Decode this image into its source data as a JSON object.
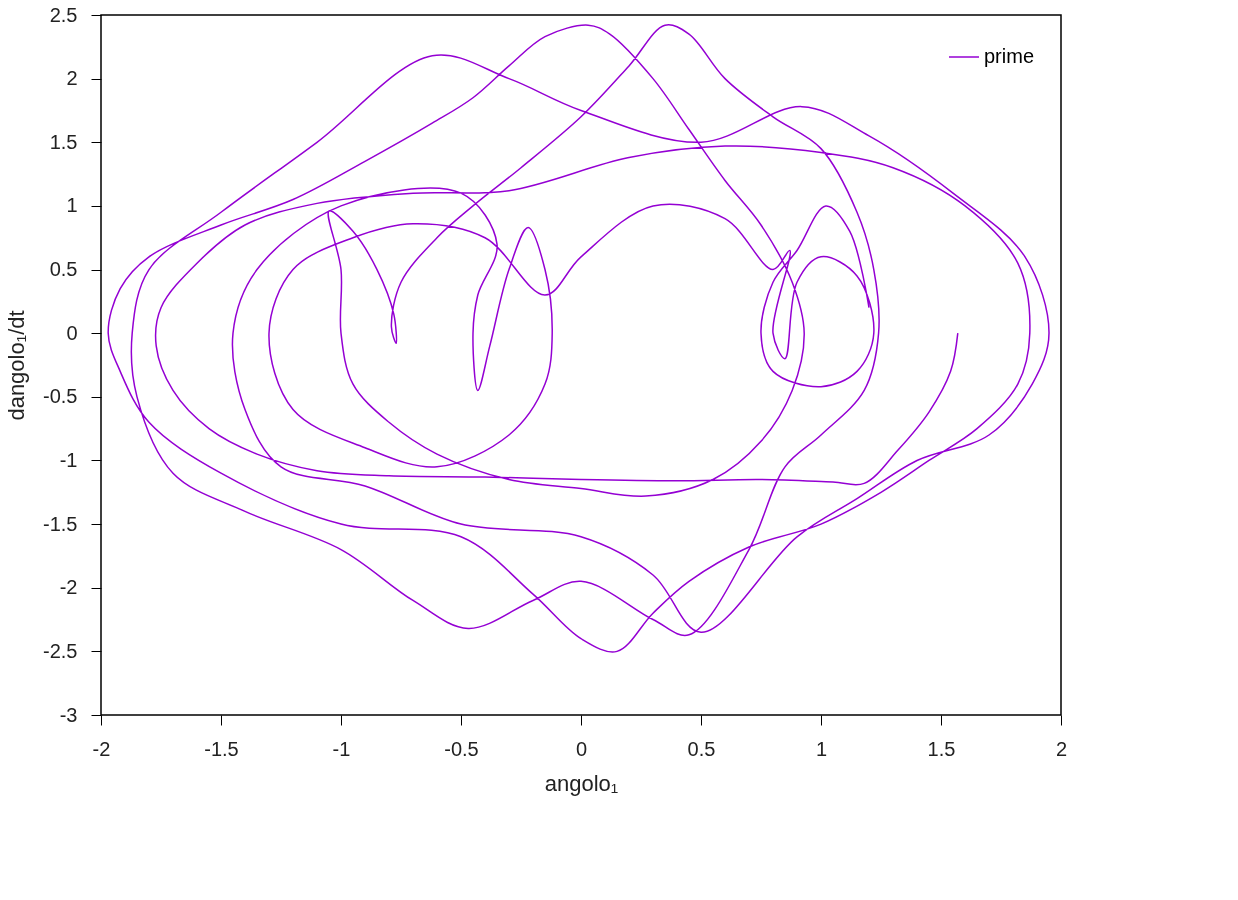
{
  "chart_data": {
    "type": "line",
    "xlabel": "angolo₁",
    "ylabel": "dangolo₁/dt",
    "xlim": [
      -2,
      2
    ],
    "ylim": [
      -3,
      2.5
    ],
    "xticks": [
      -2,
      -1.5,
      -1,
      -0.5,
      0,
      0.5,
      1,
      1.5,
      2
    ],
    "yticks": [
      -3,
      -2.5,
      -2,
      -1.5,
      -1,
      -0.5,
      0,
      0.5,
      1,
      1.5,
      2,
      2.5
    ],
    "grid": false,
    "legend": "top right",
    "marker": "none",
    "line_style": "solid",
    "series": [
      {
        "name": "prime",
        "color": "#9400d3",
        "x": [
          1.57,
          1.54,
          1.45,
          1.32,
          1.18,
          1.05,
          0.75,
          0.4,
          0.0,
          -0.4,
          -0.8,
          -1.1,
          -1.35,
          -1.55,
          -1.7,
          -1.77,
          -1.75,
          -1.6,
          -1.4,
          -1.1,
          -0.7,
          -0.3,
          0.2,
          0.6,
          1.0,
          1.3,
          1.6,
          1.82,
          1.87,
          1.82,
          1.65,
          1.45,
          1.25,
          1.0,
          0.7,
          0.45,
          0.3,
          0.15,
          0.0,
          -0.2,
          -0.5,
          -1.0,
          -1.5,
          -1.8,
          -1.92,
          -1.97,
          -1.92,
          -1.8,
          -1.5,
          -1.2,
          -0.9,
          -0.62,
          -0.45,
          -0.3,
          -0.15,
          0.03,
          0.12,
          0.3,
          0.45,
          0.6,
          0.75,
          0.88,
          0.93,
          0.88,
          0.75,
          0.55,
          0.27,
          0.0,
          -0.3,
          -0.6,
          -0.8,
          -0.95,
          -1.0,
          -1.0,
          -1.05,
          -0.95,
          -0.85,
          -0.78,
          -0.77,
          -0.79,
          -0.75,
          -0.6,
          -0.45,
          -0.25,
          0.0,
          0.2,
          0.35,
          0.45,
          0.6,
          0.8,
          1.0,
          1.15,
          1.22,
          1.24,
          1.18,
          1.0,
          0.85,
          0.7,
          0.45,
          0.3,
          0.0,
          -0.2,
          -0.47,
          -0.7,
          -1.0,
          -1.4,
          -1.7,
          -1.85,
          -1.87,
          -1.8,
          -1.5,
          -1.1,
          -0.62,
          -0.3,
          0.0,
          0.5,
          0.92,
          1.2,
          1.55,
          1.85,
          1.95,
          1.88,
          1.7,
          1.4,
          1.15,
          0.9,
          0.5,
          0.3,
          0.0,
          -0.5,
          -0.9,
          -1.25,
          -1.4,
          -1.45,
          -1.35,
          -1.0,
          -0.5,
          -0.35,
          -0.43,
          -0.45,
          -0.43,
          -0.38,
          -0.3,
          -0.22,
          -0.15,
          -0.12,
          -0.15,
          -0.3,
          -0.6,
          -0.9,
          -1.2,
          -1.3,
          -1.2,
          -0.95,
          -0.7,
          -0.4,
          -0.15,
          0.0,
          0.3,
          0.6,
          0.8,
          0.87,
          0.8,
          0.85,
          0.9,
          1.0,
          1.15,
          1.22,
          1.15,
          1.0,
          0.8,
          0.75,
          0.8,
          0.9,
          1.02,
          1.12,
          1.2
        ],
        "values": [
          0.0,
          -0.3,
          -0.62,
          -0.92,
          -1.18,
          -1.17,
          -1.15,
          -1.16,
          -1.15,
          -1.13,
          -1.12,
          -1.08,
          -0.95,
          -0.75,
          -0.45,
          -0.1,
          0.2,
          0.55,
          0.85,
          1.02,
          1.1,
          1.12,
          1.38,
          1.47,
          1.42,
          1.3,
          1.0,
          0.55,
          0.0,
          -0.4,
          -0.75,
          -1.0,
          -1.25,
          -1.5,
          -1.68,
          -1.95,
          -2.2,
          -2.5,
          -2.4,
          -2.05,
          -1.6,
          -1.5,
          -1.1,
          -0.7,
          -0.3,
          0.0,
          0.35,
          0.6,
          0.85,
          1.05,
          1.35,
          1.65,
          1.85,
          2.1,
          2.33,
          2.42,
          2.35,
          2.0,
          1.6,
          1.2,
          0.85,
          0.4,
          0.0,
          -0.45,
          -0.85,
          -1.15,
          -1.28,
          -1.22,
          -1.15,
          -0.95,
          -0.7,
          -0.4,
          0.0,
          0.5,
          0.96,
          0.8,
          0.5,
          0.15,
          -0.08,
          0.05,
          0.4,
          0.75,
          1.0,
          1.3,
          1.7,
          2.1,
          2.42,
          2.35,
          2.0,
          1.7,
          1.45,
          0.95,
          0.5,
          0.0,
          -0.45,
          -0.8,
          -1.05,
          -1.7,
          -2.37,
          -2.25,
          -1.95,
          -2.1,
          -2.32,
          -2.1,
          -1.7,
          -1.4,
          -1.1,
          -0.5,
          0.0,
          0.5,
          0.95,
          1.5,
          2.18,
          2.0,
          1.75,
          1.5,
          1.78,
          1.55,
          1.1,
          0.6,
          0.0,
          -0.4,
          -0.8,
          -1.0,
          -1.3,
          -1.6,
          -2.35,
          -1.9,
          -1.6,
          -1.5,
          -1.2,
          -1.05,
          -0.6,
          0.0,
          0.5,
          1.0,
          1.1,
          0.7,
          0.3,
          0.0,
          -0.45,
          -0.1,
          0.5,
          0.83,
          0.5,
          0.0,
          -0.4,
          -0.8,
          -1.05,
          -0.9,
          -0.6,
          0.0,
          0.5,
          0.75,
          0.86,
          0.75,
          0.3,
          0.6,
          1.0,
          0.9,
          0.5,
          0.65,
          0.0,
          -0.2,
          0.4,
          0.6,
          0.45,
          0.0,
          -0.3,
          -0.42,
          -0.3,
          0.0,
          0.4,
          0.65,
          1.0,
          0.8,
          0.2
        ]
      }
    ]
  }
}
